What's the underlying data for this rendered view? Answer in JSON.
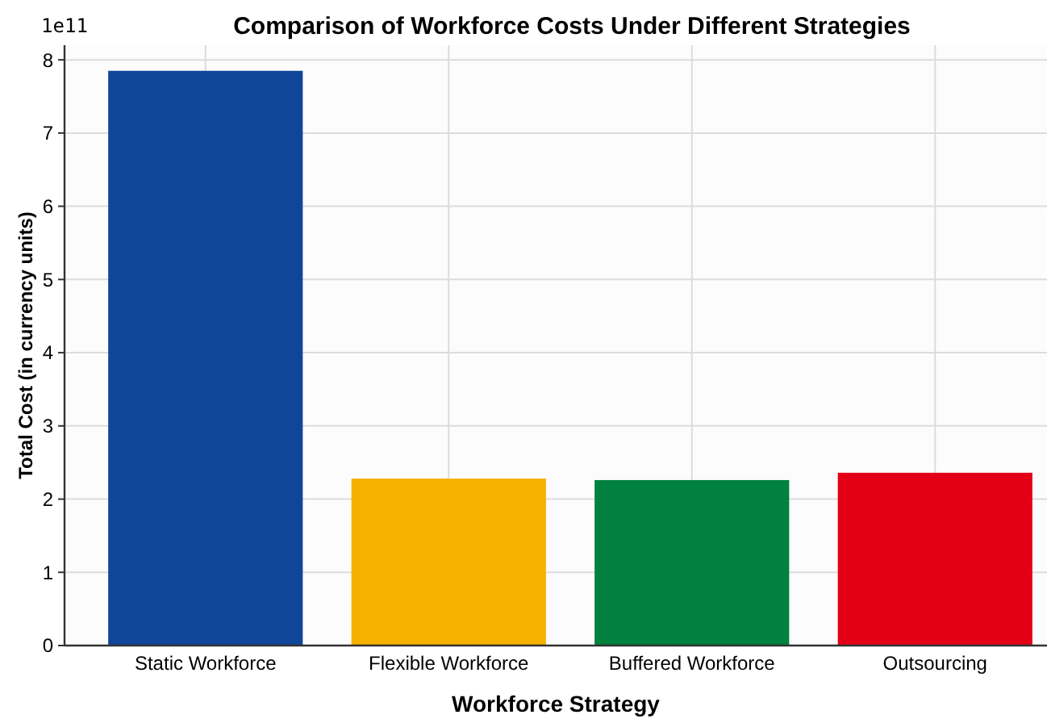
{
  "chart_data": {
    "type": "bar",
    "title": "Comparison of Workforce Costs Under Different Strategies",
    "xlabel": "Workforce Strategy",
    "ylabel": "Total Cost (in currency units)",
    "categories": [
      "Static Workforce",
      "Flexible Workforce",
      "Buffered Workforce",
      "Outsourcing"
    ],
    "values": [
      7.85,
      2.28,
      2.26,
      2.36
    ],
    "colors": [
      "#0f4699",
      "#f5b000",
      "#00813d",
      "#e30016"
    ],
    "ylim": [
      0,
      8.2
    ],
    "yticks": [
      0,
      1,
      2,
      3,
      4,
      5,
      6,
      7,
      8
    ],
    "annotations": [
      "1e11"
    ],
    "grid": true
  }
}
